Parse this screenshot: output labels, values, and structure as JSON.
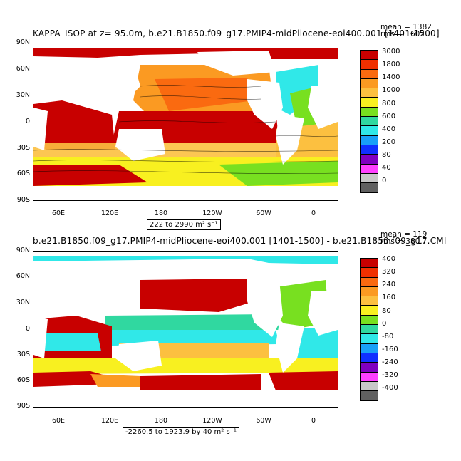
{
  "panel1": {
    "title": "KAPPA_ISOP at z=   95.0m, b.e21.B1850.f09_g17.PMIP4-midPliocene-eoi400.001 [1401-1500]",
    "mean": "mean = 1382",
    "rms": "rms = 1602",
    "range": "222 to 2990 m² s⁻¹",
    "colorbar_labels": [
      "3000",
      "1800",
      "1400",
      "1000",
      "800",
      "600",
      "400",
      "200",
      "80",
      "40",
      "0"
    ],
    "colorbar_colors": [
      "#c80000",
      "#f03000",
      "#fa6a10",
      "#fb9a22",
      "#fcc040",
      "#f8f020",
      "#78e020",
      "#30d8a0",
      "#30e8e8",
      "#18a0f8",
      "#1030ff",
      "#8000c0",
      "#ff40ff",
      "#c8c8c8",
      "#606060"
    ]
  },
  "panel2": {
    "title": "b.e21.B1850.f09_g17.PMIP4-midPliocene-eoi400.001 [1401-1500] - b.e21.B1850.f09_g17.CMI",
    "mean": "mean = 119",
    "rms": "rms = 380.7",
    "range": "-2260.5 to 1923.9 by 40 m² s⁻¹",
    "colorbar_labels": [
      "400",
      "320",
      "240",
      "160",
      "80",
      "0",
      "-80",
      "-160",
      "-240",
      "-320",
      "-400"
    ],
    "colorbar_colors": [
      "#c80000",
      "#f03000",
      "#fa6a10",
      "#fb9a22",
      "#fcc040",
      "#f8f020",
      "#78e020",
      "#30d8a0",
      "#30e8e8",
      "#18a0f8",
      "#1030ff",
      "#8000c0",
      "#ff40ff",
      "#c8c8c8",
      "#606060"
    ]
  },
  "axes": {
    "lat_labels": [
      "90N",
      "60N",
      "30N",
      "0",
      "30S",
      "60S",
      "90S"
    ],
    "lon_labels": [
      "60E",
      "120E",
      "180",
      "120W",
      "60W",
      "0"
    ]
  }
}
